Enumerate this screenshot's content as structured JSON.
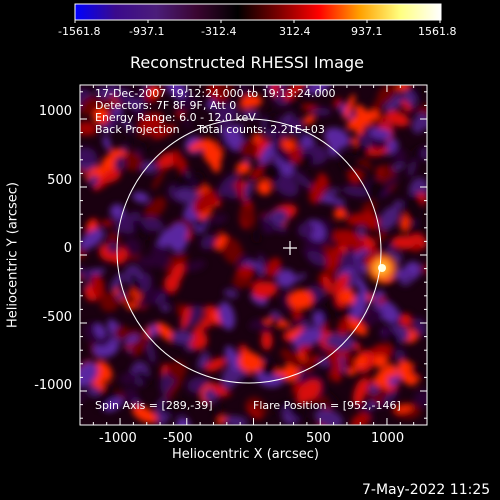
{
  "colorbar": {
    "ticks": [
      "-1561.8",
      "-937.1",
      "-312.4",
      "312.4",
      "937.1",
      "1561.8"
    ],
    "stops": [
      "#0000ff",
      "#3a0a8c",
      "#4b1d7a",
      "#3a0530",
      "#000000",
      "#7a0000",
      "#ff0000",
      "#ffa000",
      "#ffff80",
      "#ffffff"
    ]
  },
  "plot": {
    "title": "Reconstructed RHESSI Image",
    "xlabel": "Heliocentric X (arcsec)",
    "ylabel": "Heliocentric Y (arcsec)",
    "x_ticks": [
      "-1000",
      "-500",
      "0",
      "500",
      "1000"
    ],
    "y_ticks": [
      "1000",
      "500",
      "0",
      "-500",
      "-1000"
    ],
    "info_lines": [
      "17-Dec-2007 19:12:24.000 to 19:13:24.000",
      "Detectors: 7F 8F 9F, Att 0",
      "Energy Range: 6.0 - 12.0 keV",
      "Back Projection     Total counts: 2.21E+03"
    ],
    "spin_axis": "Spin Axis = [289,-39]",
    "flare_position": "Flare Position = [952,-146]"
  },
  "chart_data": {
    "type": "heatmap",
    "title": "Reconstructed RHESSI Image",
    "xlabel": "Heliocentric X (arcsec)",
    "ylabel": "Heliocentric Y (arcsec)",
    "xlim": [
      -1300,
      1300
    ],
    "ylim": [
      -1250,
      1250
    ],
    "x_ticks": [
      -1000,
      -500,
      0,
      500,
      1000
    ],
    "y_ticks": [
      -1000,
      -500,
      0,
      500,
      1000
    ],
    "value_range": [
      -1561.8,
      1561.8
    ],
    "solar_disk_radius_arcsec": 960,
    "spin_axis": [
      289,
      -39
    ],
    "flare_position": [
      952,
      -146
    ]
  },
  "footer": {
    "timestamp": "7-May-2022 11:25"
  }
}
